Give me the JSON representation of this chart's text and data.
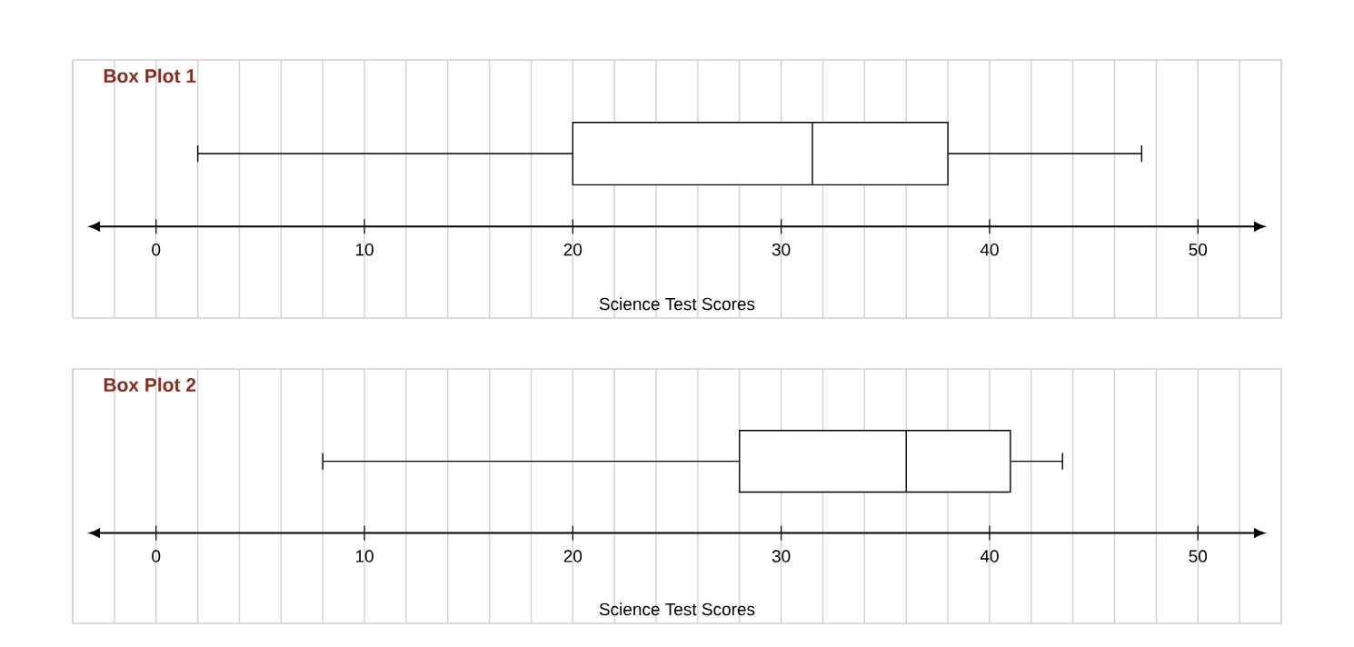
{
  "chart_data": [
    {
      "type": "box",
      "title": "Box Plot 1",
      "xlabel": "Science Test Scores",
      "orientation": "horizontal",
      "categories": [
        null
      ],
      "boxes": [
        {
          "low": 2,
          "q1": 20,
          "median": 31.5,
          "q3": 38,
          "high": 47.3
        }
      ],
      "xlim": [
        -4,
        54
      ],
      "xticks": [
        0,
        10,
        20,
        30,
        40,
        50
      ],
      "grid": true,
      "tick_labels": "x"
    },
    {
      "type": "box",
      "title": "Box Plot 2",
      "xlabel": "Science Test Scores",
      "orientation": "horizontal",
      "categories": [
        null
      ],
      "boxes": [
        {
          "low": 8,
          "q1": 28,
          "median": 36,
          "q3": 41,
          "high": 43.5
        }
      ],
      "xlim": [
        -4,
        54
      ],
      "xticks": [
        0,
        10,
        20,
        30,
        40,
        50
      ],
      "grid": true,
      "tick_labels": "x"
    }
  ]
}
